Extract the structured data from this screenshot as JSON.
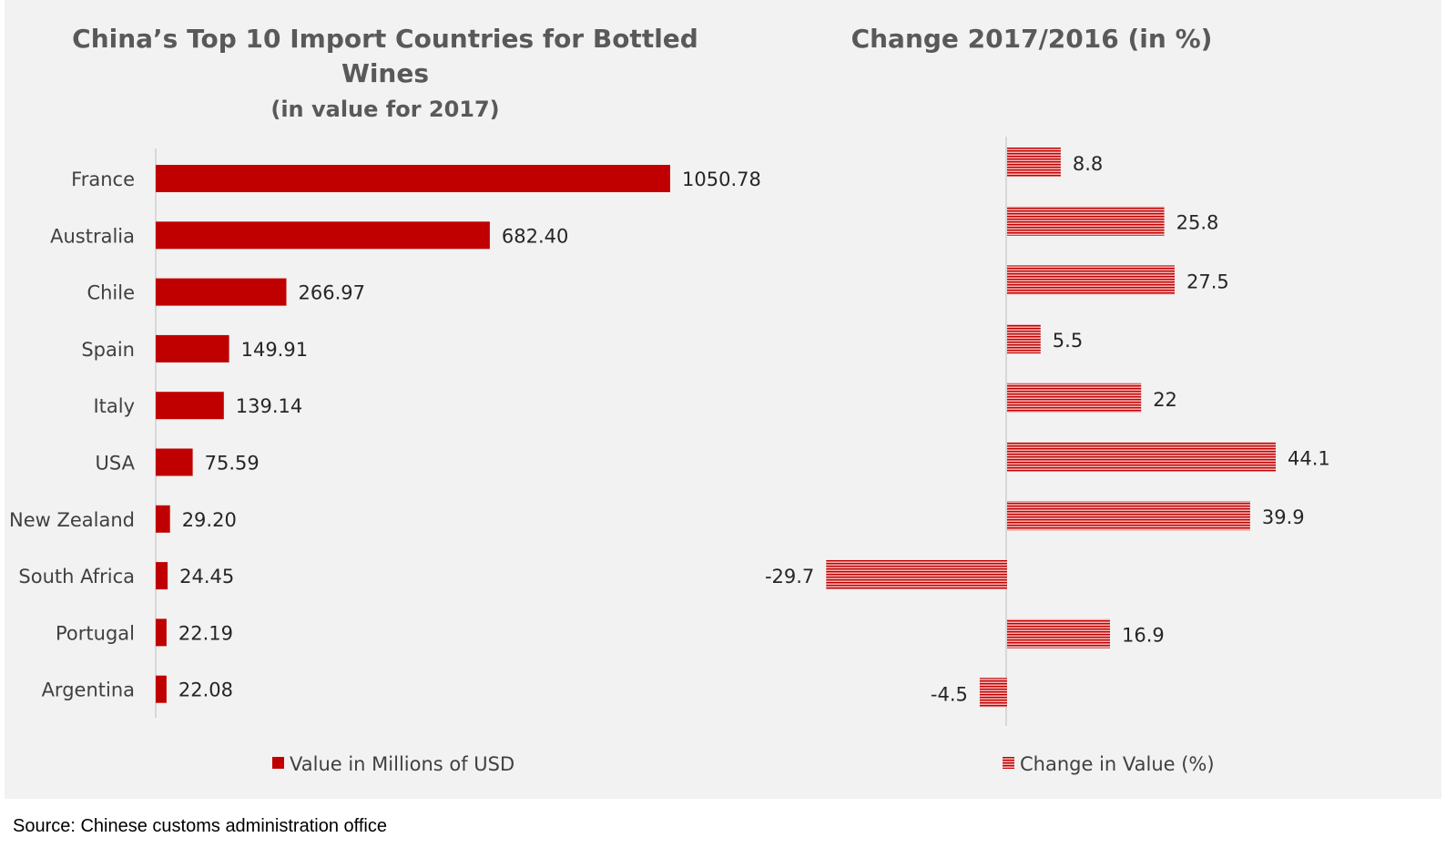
{
  "chart_data": [
    {
      "type": "bar",
      "orientation": "horizontal",
      "title": "China’s Top 10 Import Countries for Bottled Wines",
      "subtitle": "(in value for 2017)",
      "categories": [
        "France",
        "Australia",
        "Chile",
        "Spain",
        "Italy",
        "USA",
        "New Zealand",
        "South Africa",
        "Portugal",
        "Argentina"
      ],
      "series": [
        {
          "name": "Value in Millions of USD",
          "values": [
            1050.78,
            682.4,
            266.97,
            149.91,
            139.14,
            75.59,
            29.2,
            24.45,
            22.19,
            22.08
          ],
          "labels": [
            "1050.78",
            "682.40",
            "266.97",
            "149.91",
            "139.14",
            "75.59",
            "29.20",
            "24.45",
            "22.19",
            "22.08"
          ],
          "color": "#c00000"
        }
      ],
      "xlim": [
        0,
        1500
      ],
      "grid": false,
      "legend": "bottom"
    },
    {
      "type": "bar",
      "orientation": "horizontal",
      "title": "Change 2017/2016 (in %)",
      "categories": [
        "France",
        "Australia",
        "Chile",
        "Spain",
        "Italy",
        "USA",
        "New Zealand",
        "South Africa",
        "Portugal",
        "Argentina"
      ],
      "series": [
        {
          "name": "Change in Value (%)",
          "values": [
            8.8,
            25.8,
            27.5,
            5.5,
            22,
            44.1,
            39.9,
            -29.7,
            16.9,
            -4.5
          ],
          "labels": [
            "8.8",
            "25.8",
            "27.5",
            "5.5",
            "22",
            "44.1",
            "39.9",
            "-29.7",
            "16.9",
            "-4.5"
          ],
          "color": "#c00000",
          "pattern": "horizontal-stripes"
        }
      ],
      "xlim": [
        -30,
        50
      ],
      "grid": false,
      "legend": "bottom"
    }
  ],
  "source": "Source: Chinese customs administration office"
}
